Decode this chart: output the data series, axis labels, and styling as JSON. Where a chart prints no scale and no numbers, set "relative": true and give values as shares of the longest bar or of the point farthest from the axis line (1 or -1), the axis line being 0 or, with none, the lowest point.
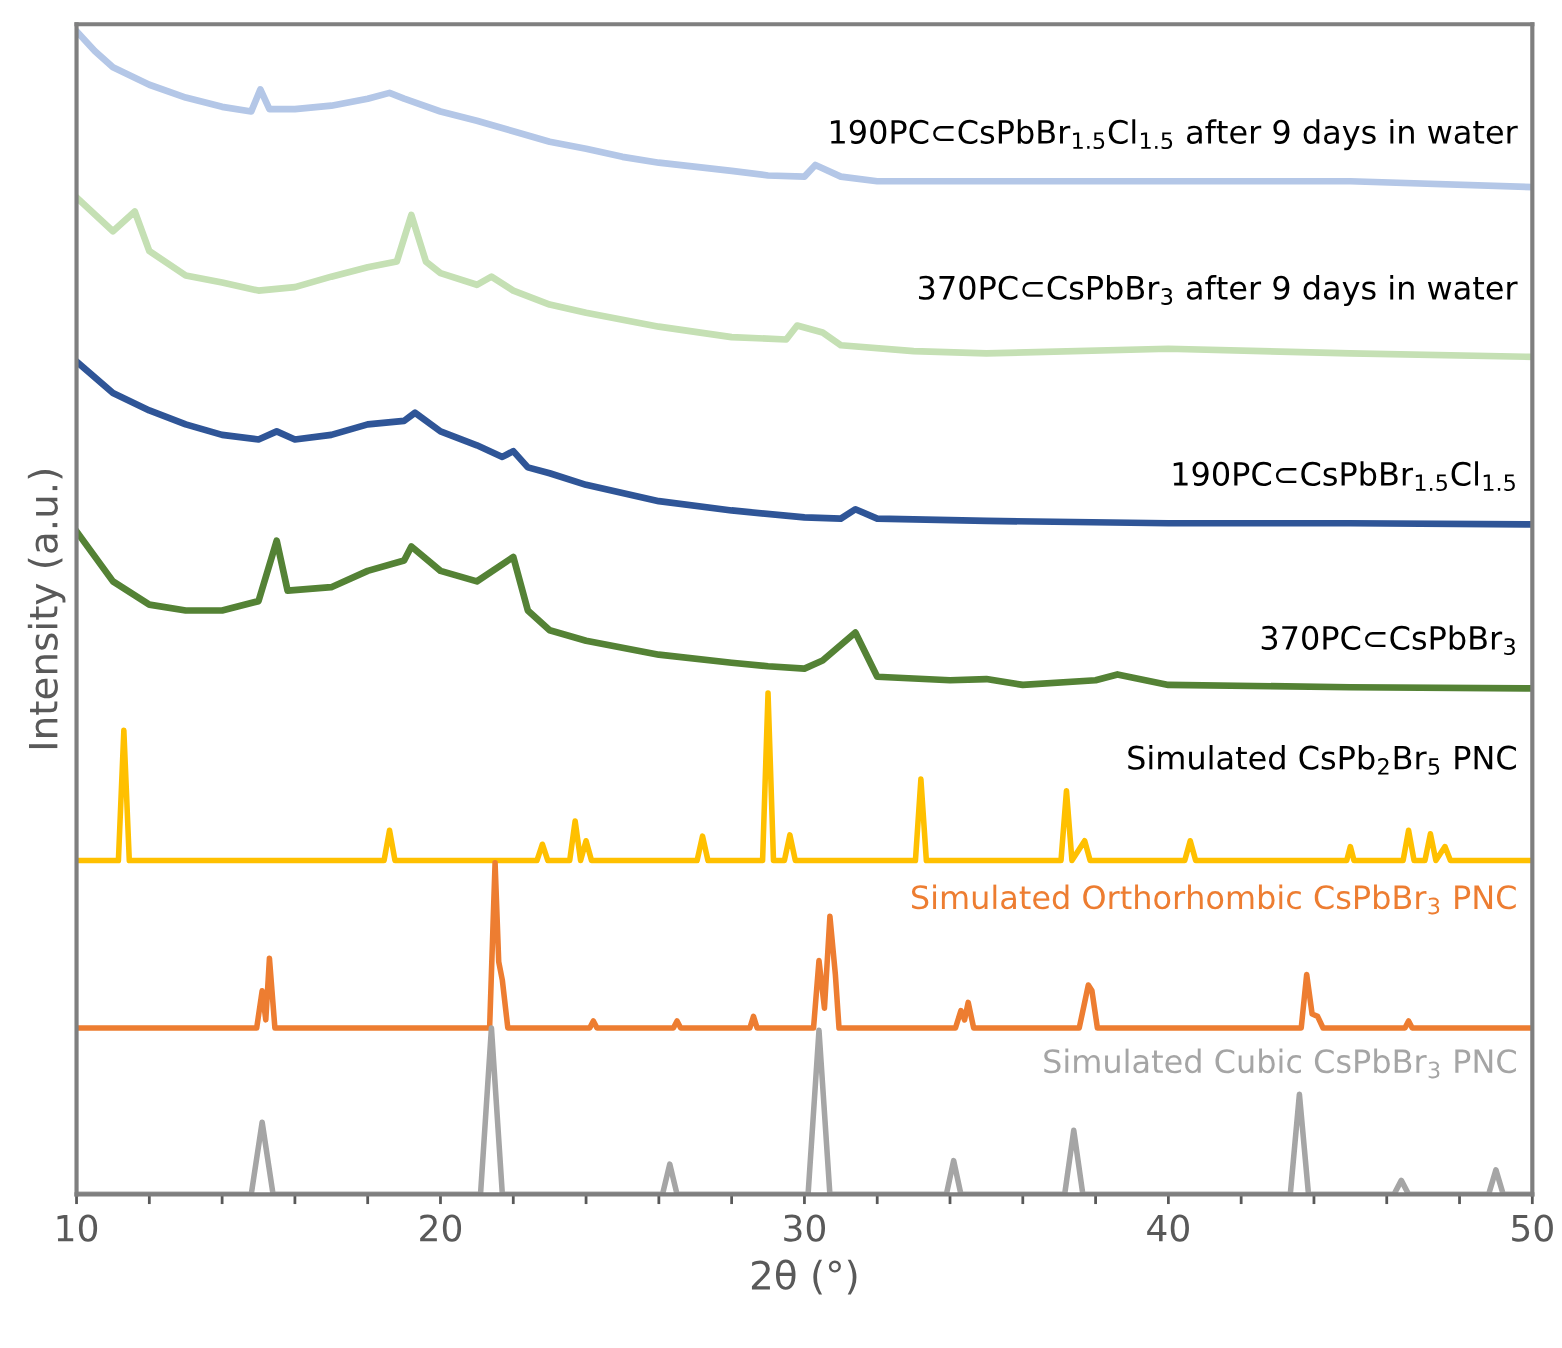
{
  "chart_data": {
    "type": "line",
    "relative": true,
    "xlabel": "2θ (°)",
    "ylabel": "Intensity (a.u.)",
    "xlim": [
      10,
      50
    ],
    "xticks": [
      10,
      {
        "value": 12,
        "label": null
      },
      {
        "value": 14,
        "label": null
      },
      {
        "value": 16,
        "label": null
      },
      {
        "value": 18,
        "label": null
      },
      20,
      {
        "value": 22,
        "label": null
      },
      {
        "value": 24,
        "label": null
      },
      {
        "value": 26,
        "label": null
      },
      {
        "value": 28,
        "label": null
      },
      30,
      {
        "value": 32,
        "label": null
      },
      {
        "value": 34,
        "label": null
      },
      {
        "value": 36,
        "label": null
      },
      {
        "value": 38,
        "label": null
      },
      40,
      {
        "value": 42,
        "label": null
      },
      {
        "value": 44,
        "label": null
      },
      {
        "value": 46,
        "label": null
      },
      {
        "value": 48,
        "label": null
      },
      50
    ],
    "grid": false,
    "legend": false,
    "marker": "none",
    "line_style": "solid",
    "series": [
      {
        "name": "190PC⊂CsPbBr$_{1.5}$Cl$_{1.5}$ after 9 days in water",
        "color": "#b4c7e7",
        "x": [
          10,
          10.5,
          11,
          12,
          13,
          14,
          14.8,
          15.05,
          15.3,
          16,
          17,
          18,
          18.6,
          19,
          20,
          21,
          22,
          23,
          24,
          25,
          26,
          28,
          29,
          30,
          30.3,
          31,
          32,
          35,
          40,
          45,
          50
        ],
        "values": [
          1.0,
          0.983,
          0.969,
          0.954,
          0.943,
          0.935,
          0.931,
          0.95,
          0.933,
          0.933,
          0.936,
          0.942,
          0.947,
          0.942,
          0.931,
          0.923,
          0.914,
          0.905,
          0.899,
          0.892,
          0.887,
          0.88,
          0.876,
          0.875,
          0.885,
          0.875,
          0.871,
          0.871,
          0.871,
          0.871,
          0.866
        ]
      },
      {
        "name": "370PC⊂CsPbBr$_{3}$ after 9 days in water",
        "color": "#c5e0b4",
        "x": [
          10,
          11,
          11.6,
          12,
          13,
          14,
          15,
          16,
          17,
          18,
          18.8,
          19.2,
          19.6,
          20,
          21,
          21.4,
          22,
          23,
          24,
          26,
          28,
          29.5,
          29.8,
          30.5,
          31,
          33,
          35,
          40,
          45,
          50
        ],
        "values": [
          0.857,
          0.828,
          0.845,
          0.811,
          0.79,
          0.784,
          0.777,
          0.78,
          0.789,
          0.797,
          0.802,
          0.842,
          0.802,
          0.792,
          0.782,
          0.789,
          0.777,
          0.765,
          0.758,
          0.746,
          0.737,
          0.735,
          0.747,
          0.741,
          0.73,
          0.725,
          0.723,
          0.727,
          0.723,
          0.72
        ]
      },
      {
        "name": "190PC⊂CsPbBr$_{1.5}$Cl$_{1.5}$",
        "color": "#2f5597",
        "x": [
          10,
          11,
          12,
          13,
          14,
          15,
          15.5,
          16,
          17,
          18,
          19,
          19.3,
          20,
          21,
          21.7,
          22.0,
          22.4,
          23,
          24,
          26,
          28,
          30,
          31,
          31.4,
          32,
          35,
          40,
          45,
          50
        ],
        "values": [
          0.716,
          0.689,
          0.674,
          0.662,
          0.653,
          0.649,
          0.656,
          0.649,
          0.653,
          0.662,
          0.665,
          0.672,
          0.656,
          0.644,
          0.634,
          0.639,
          0.625,
          0.62,
          0.61,
          0.596,
          0.588,
          0.582,
          0.581,
          0.589,
          0.581,
          0.579,
          0.577,
          0.577,
          0.576
        ]
      },
      {
        "name": "370PC⊂CsPbBr$_{3}$",
        "color": "#548235",
        "x": [
          10,
          11,
          12,
          13,
          14,
          15,
          15.5,
          15.8,
          17,
          18,
          19,
          19.2,
          20,
          21,
          22.0,
          22.4,
          23,
          24,
          26,
          28,
          29,
          30,
          30.5,
          31.4,
          32,
          34,
          35,
          36,
          38,
          38.6,
          40,
          45,
          50
        ],
        "values": [
          0.57,
          0.527,
          0.507,
          0.502,
          0.502,
          0.51,
          0.562,
          0.519,
          0.522,
          0.536,
          0.545,
          0.557,
          0.536,
          0.527,
          0.548,
          0.502,
          0.485,
          0.476,
          0.464,
          0.457,
          0.454,
          0.452,
          0.459,
          0.483,
          0.445,
          0.442,
          0.443,
          0.438,
          0.442,
          0.447,
          0.438,
          0.436,
          0.435
        ]
      },
      {
        "name": "Simulated CsPb$_{2}$Br$_{5}$ PNC",
        "color": "#ffc000",
        "x": [
          10,
          11.15,
          11.3,
          11.45,
          18.45,
          18.6,
          18.75,
          22.65,
          22.8,
          22.95,
          23.55,
          23.7,
          23.85,
          24.0,
          24.15,
          27.05,
          27.2,
          27.35,
          28.85,
          29.0,
          29.15,
          29.45,
          29.6,
          29.75,
          33.05,
          33.2,
          33.35,
          37.05,
          37.2,
          37.35,
          37.7,
          37.85,
          40.45,
          40.6,
          40.75,
          44.9,
          45.0,
          45.1,
          46.45,
          46.6,
          46.75,
          47.05,
          47.2,
          47.35,
          47.6,
          47.75,
          50
        ],
        "values": [
          0.287,
          0.287,
          0.399,
          0.287,
          0.287,
          0.313,
          0.287,
          0.287,
          0.301,
          0.287,
          0.287,
          0.321,
          0.287,
          0.304,
          0.287,
          0.287,
          0.308,
          0.287,
          0.287,
          0.431,
          0.287,
          0.287,
          0.309,
          0.287,
          0.287,
          0.357,
          0.287,
          0.287,
          0.347,
          0.287,
          0.304,
          0.287,
          0.287,
          0.304,
          0.287,
          0.287,
          0.299,
          0.287,
          0.287,
          0.313,
          0.287,
          0.287,
          0.31,
          0.287,
          0.299,
          0.287,
          0.287
        ]
      },
      {
        "name": "Simulated Orthorhombic CsPbBr$_{3}$ PNC",
        "color": "#ed7d31",
        "x": [
          10,
          14.95,
          15.1,
          15.2,
          15.3,
          15.45,
          21.35,
          21.5,
          21.6,
          21.7,
          21.85,
          24.1,
          24.2,
          24.3,
          26.4,
          26.5,
          26.6,
          28.5,
          28.6,
          28.7,
          30.25,
          30.4,
          30.55,
          30.7,
          30.85,
          30.95,
          34.15,
          34.3,
          34.4,
          34.5,
          34.65,
          37.55,
          37.7,
          37.8,
          37.9,
          38.05,
          43.65,
          43.8,
          43.95,
          44.1,
          44.25,
          46.5,
          46.6,
          46.7,
          50
        ],
        "values": [
          0.143,
          0.143,
          0.175,
          0.15,
          0.203,
          0.143,
          0.143,
          0.285,
          0.2,
          0.184,
          0.143,
          0.143,
          0.149,
          0.143,
          0.143,
          0.149,
          0.143,
          0.143,
          0.153,
          0.143,
          0.143,
          0.201,
          0.16,
          0.239,
          0.189,
          0.143,
          0.143,
          0.158,
          0.15,
          0.165,
          0.143,
          0.143,
          0.165,
          0.18,
          0.175,
          0.143,
          0.143,
          0.189,
          0.155,
          0.153,
          0.143,
          0.143,
          0.149,
          0.143,
          0.143
        ]
      },
      {
        "name": "Simulated Cubic CsPbBr$_{3}$ PNC",
        "color": "#a5a5a5",
        "x": [
          10,
          14.8,
          15.1,
          15.4,
          21.1,
          21.4,
          21.7,
          26.1,
          26.3,
          26.5,
          30.1,
          30.4,
          30.7,
          33.9,
          34.1,
          34.3,
          37.15,
          37.4,
          37.65,
          43.35,
          43.6,
          43.85,
          46.2,
          46.4,
          46.6,
          48.8,
          49.0,
          49.2,
          50
        ],
        "values": [
          0,
          0,
          0.062,
          0,
          0,
          0.143,
          0,
          0,
          0.026,
          0,
          0,
          0.141,
          0,
          0,
          0.029,
          0,
          0,
          0.055,
          0,
          0,
          0.086,
          0,
          0,
          0.012,
          0,
          0,
          0.021,
          0,
          0
        ]
      }
    ]
  }
}
